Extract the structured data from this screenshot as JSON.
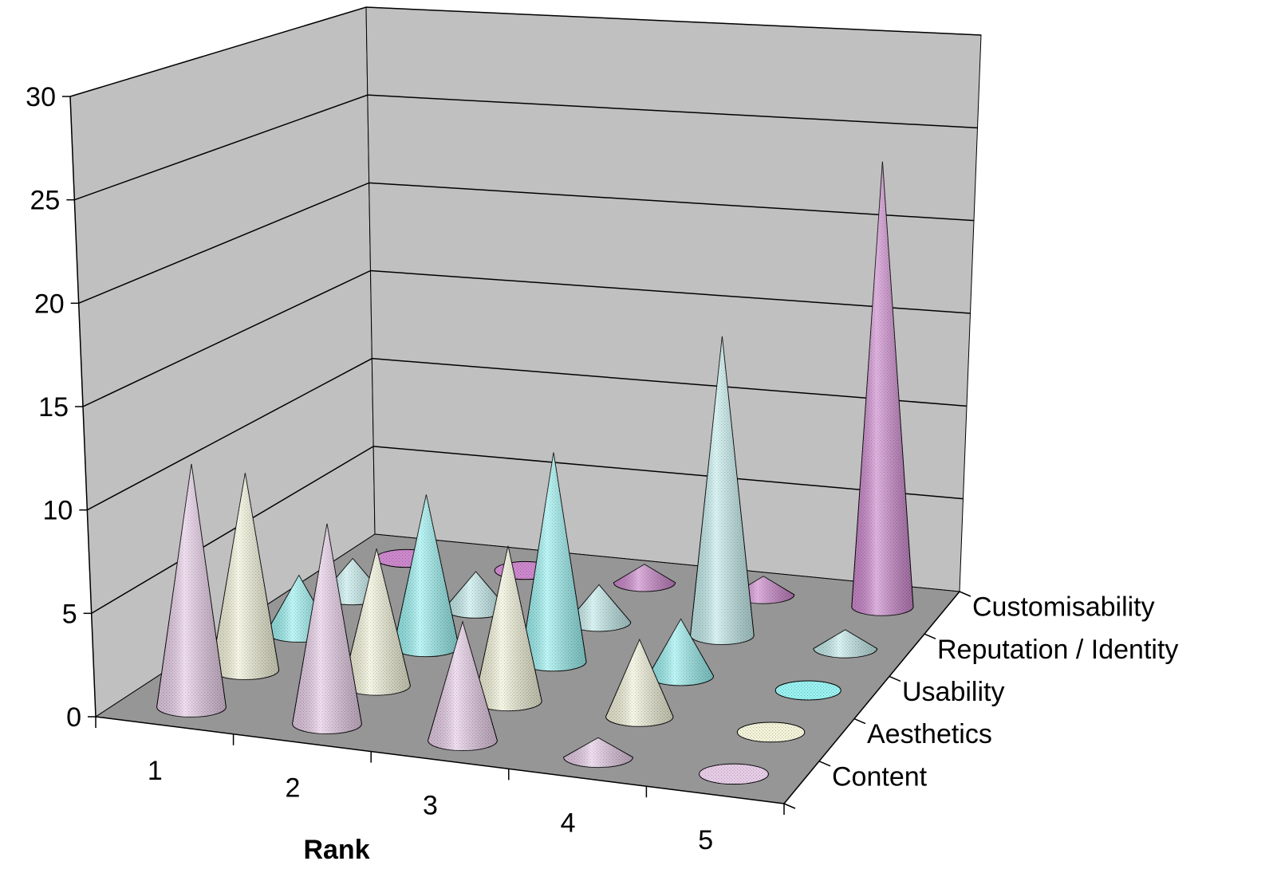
{
  "chart_data": {
    "type": "3d-cone",
    "title": "",
    "xlabel": "Rank",
    "ylabel": "",
    "zlabel": "",
    "ylim": [
      0,
      30
    ],
    "y_ticks": [
      0,
      5,
      10,
      15,
      20,
      25,
      30
    ],
    "categories": [
      "1",
      "2",
      "3",
      "4",
      "5"
    ],
    "series": [
      {
        "name": "Content",
        "color": "#e6cce6",
        "values": [
          12,
          10,
          6,
          1,
          0
        ]
      },
      {
        "name": "Aesthetics",
        "color": "#f2f2d9",
        "values": [
          10,
          7,
          8,
          4,
          0
        ]
      },
      {
        "name": "Usability",
        "color": "#99f0f0",
        "values": [
          3,
          8,
          11,
          3,
          0
        ]
      },
      {
        "name": "Reputation / Identity",
        "color": "#c4ecec",
        "values": [
          2,
          2,
          2,
          16,
          1
        ]
      },
      {
        "name": "Customisability",
        "color": "#cc88cc",
        "values": [
          0,
          0,
          1,
          1,
          24
        ]
      }
    ],
    "grid": true,
    "wall_color": "#c0c0c0",
    "floor_color": "#969696"
  }
}
